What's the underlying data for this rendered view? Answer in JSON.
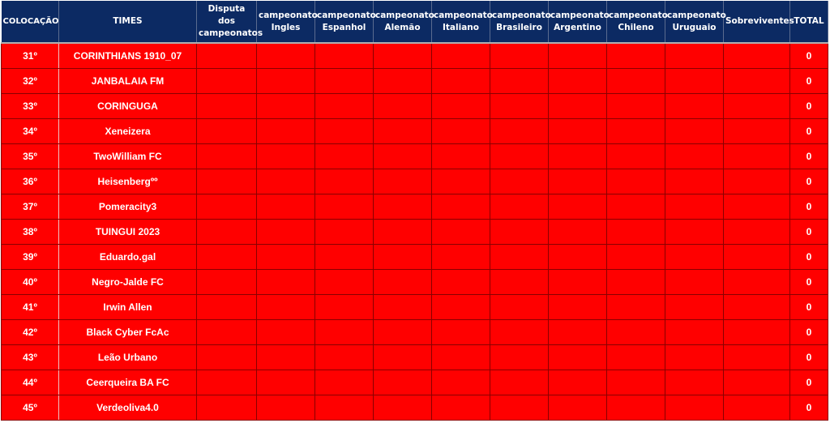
{
  "colors": {
    "header_bg": "#0c2a63",
    "row_bg": "#ff0000",
    "text": "#ffffff"
  },
  "headers": [
    "COLOCAÇÃO",
    "TIMES",
    "Disputa dos campeonatos",
    "campeonato Ingles",
    "campeonato Espanhol",
    "campeonato Alemão",
    "campeonato Italiano",
    "campeonato Brasileiro",
    "campeonato Argentino",
    "campeonato Chileno",
    "campeonato Uruguaio",
    "Sobreviventes",
    "TOTAL"
  ],
  "rows": [
    {
      "pos": "31º",
      "team": "CORINTHIANS 1910_07",
      "total": "0"
    },
    {
      "pos": "32º",
      "team": "JANBALAIA FM",
      "total": "0"
    },
    {
      "pos": "33º",
      "team": "CORINGUGA",
      "total": "0"
    },
    {
      "pos": "34º",
      "team": "Xeneizera",
      "total": "0"
    },
    {
      "pos": "35º",
      "team": "TwoWilliam FC",
      "total": "0"
    },
    {
      "pos": "36º",
      "team": "Heisenbergºº",
      "total": "0"
    },
    {
      "pos": "37º",
      "team": "Pomeracity3",
      "total": "0"
    },
    {
      "pos": "38º",
      "team": "TUINGUI 2023",
      "total": "0"
    },
    {
      "pos": "39º",
      "team": "Eduardo.gal",
      "total": "0"
    },
    {
      "pos": "40º",
      "team": "Negro-Jalde FC",
      "total": "0"
    },
    {
      "pos": "41º",
      "team": "Irwin Allen",
      "total": "0"
    },
    {
      "pos": "42º",
      "team": "Black Cyber FcAc",
      "total": "0"
    },
    {
      "pos": "43º",
      "team": "Leão Urbano",
      "total": "0"
    },
    {
      "pos": "44º",
      "team": "Ceerqueira BA FC",
      "total": "0"
    },
    {
      "pos": "45º",
      "team": "Verdeoliva4.0",
      "total": "0"
    }
  ]
}
